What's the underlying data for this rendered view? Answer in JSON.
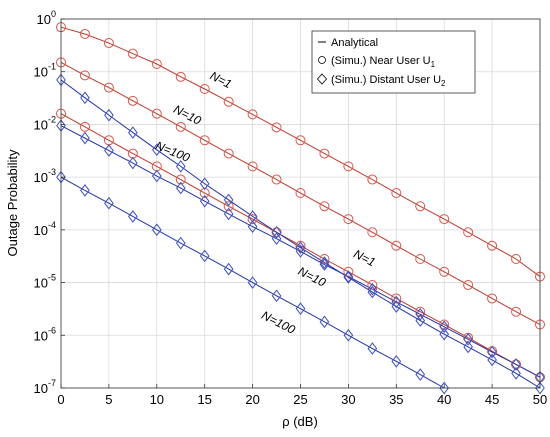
{
  "chart_data": {
    "type": "line",
    "xlabel": "ρ (dB)",
    "ylabel": "Outage Probability",
    "xlim": [
      0,
      50
    ],
    "ylim": [
      1e-07,
      1
    ],
    "yscale": "log",
    "grid": true,
    "x_ticks": [
      "0",
      "5",
      "10",
      "15",
      "20",
      "25",
      "30",
      "35",
      "40",
      "45",
      "50"
    ],
    "y_ticks": [
      {
        "base": "10",
        "exp": "0"
      },
      {
        "base": "10",
        "exp": "-1"
      },
      {
        "base": "10",
        "exp": "-2"
      },
      {
        "base": "10",
        "exp": "-3"
      },
      {
        "base": "10",
        "exp": "-4"
      },
      {
        "base": "10",
        "exp": "-5"
      },
      {
        "base": "10",
        "exp": "-6"
      },
      {
        "base": "10",
        "exp": "-7"
      }
    ],
    "legend": {
      "placement": "top-right",
      "entries": [
        {
          "marker": "line",
          "label": "Analytical",
          "sub": ""
        },
        {
          "marker": "circle",
          "label": "(Simu.) Near User U",
          "sub": "1"
        },
        {
          "marker": "diamond",
          "label": "(Simu.) Distant User U",
          "sub": "2"
        }
      ]
    },
    "colors": {
      "near": "#d9574a",
      "distant": "#3a4fc4",
      "line_near": "#c0392b",
      "line_distant": "#2233aa"
    },
    "series": [
      {
        "user": "near",
        "N": "N=1",
        "x": [
          0,
          2.5,
          5,
          7.5,
          10,
          12.5,
          15,
          17.5,
          20,
          22.5,
          25,
          27.5,
          30,
          32.5,
          35,
          37.5,
          40,
          42.5,
          45,
          47.5,
          50
        ],
        "y": [
          0.7,
          0.52,
          0.35,
          0.22,
          0.14,
          0.08,
          0.047,
          0.027,
          0.0155,
          0.0088,
          0.005,
          0.0028,
          0.0016,
          0.0009,
          0.0005,
          0.00028,
          0.00016,
          9e-05,
          5e-05,
          2.8e-05,
          1.3e-05
        ]
      },
      {
        "user": "near",
        "N": "N=10",
        "x": [
          0,
          2.5,
          5,
          7.5,
          10,
          12.5,
          15,
          17.5,
          20,
          22.5,
          25,
          27.5,
          30,
          32.5,
          35,
          37.5,
          40,
          42.5,
          45,
          47.5,
          50
        ],
        "y": [
          0.15,
          0.085,
          0.05,
          0.028,
          0.016,
          0.009,
          0.005,
          0.0028,
          0.0016,
          0.0009,
          0.0005,
          0.00028,
          0.00016,
          9e-05,
          5e-05,
          2.8e-05,
          1.6e-05,
          9e-06,
          5e-06,
          2.8e-06,
          1.6e-06
        ]
      },
      {
        "user": "near",
        "N": "N=100",
        "x": [
          0,
          2.5,
          5,
          7.5,
          10,
          12.5,
          15,
          17.5,
          20,
          22.5,
          25,
          27.5,
          30,
          32.5,
          35,
          37.5,
          40,
          42.5,
          45,
          47.5,
          50
        ],
        "y": [
          0.016,
          0.009,
          0.005,
          0.0028,
          0.0016,
          0.0009,
          0.0005,
          0.00028,
          0.00016,
          9e-05,
          5e-05,
          2.8e-05,
          1.6e-05,
          9e-06,
          5e-06,
          2.8e-06,
          1.6e-06,
          9e-07,
          5e-07,
          2.8e-07,
          1.6e-07
        ]
      },
      {
        "user": "distant",
        "N": "N=1",
        "x": [
          0,
          2.5,
          5,
          7.5,
          10,
          12.5,
          15,
          17.5,
          20,
          22.5,
          25,
          27.5,
          30,
          32.5,
          35,
          37.5,
          40,
          42.5,
          45,
          47.5,
          50
        ],
        "y": [
          0.07,
          0.032,
          0.015,
          0.007,
          0.0033,
          0.0016,
          0.00075,
          0.00037,
          0.00018,
          9e-05,
          4.6e-05,
          2.4e-05,
          1.25e-05,
          6.6e-06,
          3.5e-06,
          1.9e-06,
          1.05e-06,
          6e-07,
          3.4e-07,
          1.9e-07,
          1e-07
        ]
      },
      {
        "user": "distant",
        "N": "N=10",
        "x": [
          0,
          2.5,
          5,
          7.5,
          10,
          12.5,
          15,
          17.5,
          20,
          22.5,
          25,
          27.5,
          30,
          32.5,
          35,
          37.5,
          40,
          42.5,
          45,
          47.5,
          50
        ],
        "y": [
          0.0095,
          0.0055,
          0.0032,
          0.00185,
          0.00105,
          0.00062,
          0.00035,
          0.0002,
          0.000115,
          6.8e-05,
          3.9e-05,
          2.2e-05,
          1.3e-05,
          7.5e-06,
          4.3e-06,
          2.5e-06,
          1.45e-06,
          8.4e-07,
          4.8e-07,
          2.8e-07,
          1.6e-07
        ]
      },
      {
        "user": "distant",
        "N": "N=100",
        "x": [
          0,
          2.5,
          5,
          7.5,
          10,
          12.5,
          15,
          17.5,
          20,
          22.5,
          25,
          27.5,
          30,
          32.5,
          35,
          37.5,
          40
        ],
        "y": [
          0.001,
          0.00056,
          0.00032,
          0.00018,
          0.0001,
          5.6e-05,
          3.2e-05,
          1.8e-05,
          1e-05,
          5.6e-06,
          3.2e-06,
          1.8e-06,
          1e-06,
          5.6e-07,
          3.2e-07,
          1.8e-07,
          1e-07
        ]
      }
    ],
    "annotations": [
      {
        "text": "N=1",
        "x": 16.5,
        "y": 0.06,
        "angle": 27
      },
      {
        "text": "N=10",
        "x": 13,
        "y": 0.013,
        "angle": 27
      },
      {
        "text": "N=100",
        "x": 11.5,
        "y": 0.0026,
        "angle": 22
      },
      {
        "text": "N=1",
        "x": 31.5,
        "y": 2.5e-05,
        "angle": 27
      },
      {
        "text": "N=10",
        "x": 26,
        "y": 1.1e-05,
        "angle": 27
      },
      {
        "text": "N=100",
        "x": 22.5,
        "y": 1.5e-06,
        "angle": 27
      }
    ]
  }
}
